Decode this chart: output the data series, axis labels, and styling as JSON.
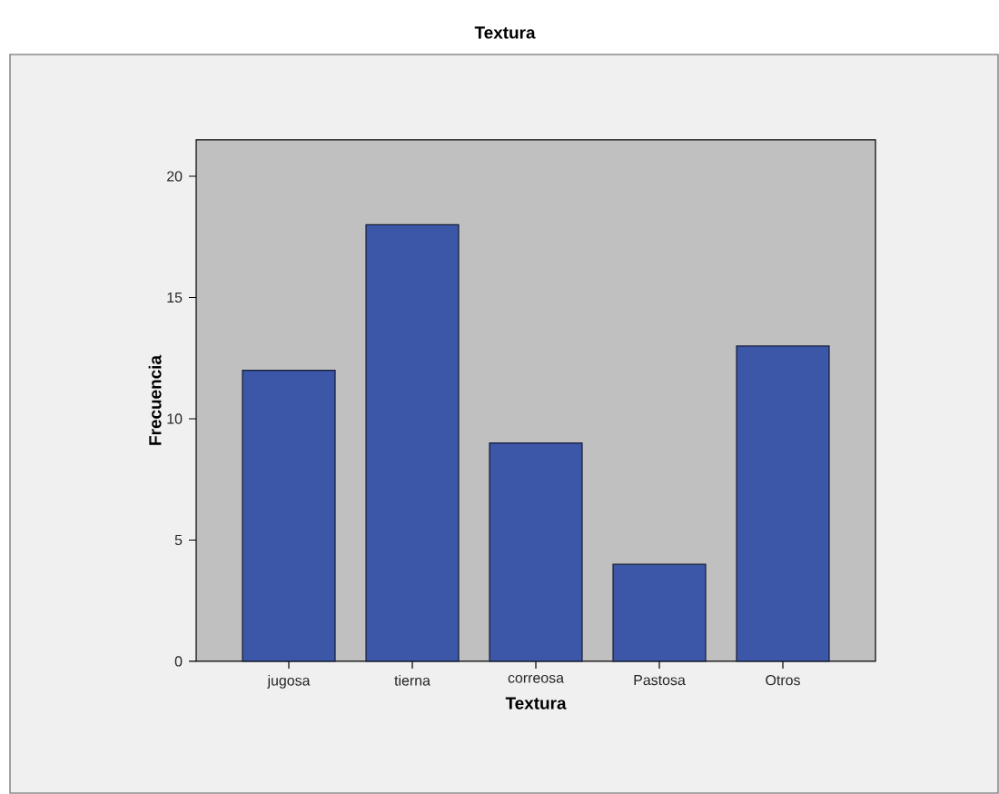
{
  "chart_data": {
    "type": "bar",
    "title": "Textura",
    "xlabel": "Textura",
    "ylabel": "Frecuencia",
    "categories": [
      "jugosa",
      "tierna",
      "correosa",
      "Pastosa",
      "Otros"
    ],
    "values": [
      12,
      18,
      9,
      4,
      13
    ],
    "color": "#3c56a8",
    "ylim": [
      0,
      21.5
    ],
    "yticks": [
      0,
      5,
      10,
      15,
      20
    ]
  }
}
